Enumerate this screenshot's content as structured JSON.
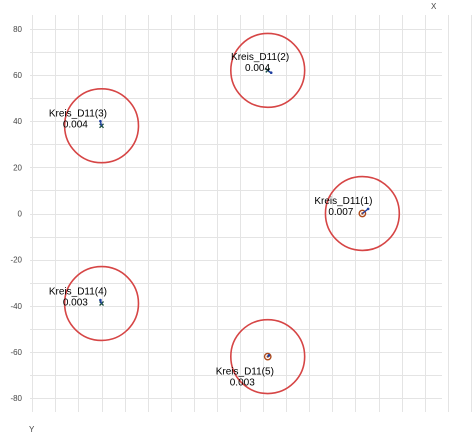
{
  "chart_data": {
    "type": "scatter",
    "title": "",
    "x_axis_letter": "X",
    "y_axis_letter": "Y",
    "xlim": [
      -111,
      80
    ],
    "ylim": [
      -86,
      86
    ],
    "yticks": [
      80,
      60,
      40,
      20,
      0,
      -20,
      -40,
      -60,
      -80
    ],
    "tick_labels": [
      "80",
      "60",
      "40",
      "20",
      "0",
      "-20",
      "-40",
      "-60",
      "-80"
    ],
    "grid": true,
    "circles": [
      {
        "name": "Kreis_D11(1)",
        "value": "0.007",
        "center": [
          33,
          0
        ],
        "radius": 16,
        "marker": [
          33,
          0
        ],
        "marker_style": "ring",
        "arrow_dx": 2.5,
        "arrow_dy": 2
      },
      {
        "name": "Kreis_D11(2)",
        "value": "0.004",
        "center": [
          -8,
          62
        ],
        "radius": 16,
        "marker": [
          -8,
          62
        ],
        "marker_style": "cross",
        "arrow_dx": 1.5,
        "arrow_dy": -1
      },
      {
        "name": "Kreis_D11(3)",
        "value": "0.004",
        "center": [
          -80,
          38
        ],
        "radius": 16,
        "marker": [
          -80,
          38
        ],
        "marker_style": "cross",
        "arrow_dx": -0.5,
        "arrow_dy": 2
      },
      {
        "name": "Kreis_D11(4)",
        "value": "0.003",
        "center": [
          -80,
          -39
        ],
        "radius": 16,
        "marker": [
          -80,
          -39
        ],
        "marker_style": "cross",
        "arrow_dx": -0.5,
        "arrow_dy": 1.5
      },
      {
        "name": "Kreis_D11(5)",
        "value": "0.003",
        "center": [
          -8,
          -62
        ],
        "radius": 16,
        "marker": [
          -8,
          -62
        ],
        "marker_style": "ring",
        "arrow_dx": 0.5,
        "arrow_dy": 0.5
      }
    ],
    "colors": {
      "circle": "#d64545",
      "marker": "#b04a1a",
      "cross": "#1b4d3e",
      "arrow": "#1f3fa0",
      "grid": "#e4e4e4"
    }
  }
}
